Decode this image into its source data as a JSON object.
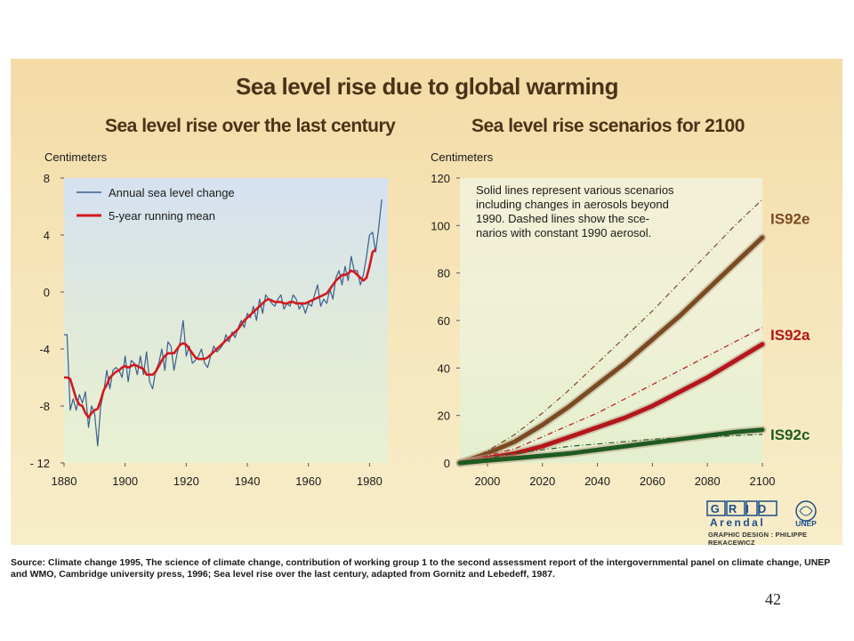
{
  "slide": {
    "main_title": "Sea level rise due to global warming",
    "source_note": "Source: Climate change 1995, The science of climate change, contribution of working group 1 to the second assessment report of the intergovernmental panel on climate change, UNEP and WMO, Cambridge university press,  1996; Sea level rise over the last century, adapted from Gornitz and Lebedeff, 1987.",
    "page_number": "42",
    "logo": {
      "grid_text": "GRID",
      "arendal_text": "Arendal",
      "unep_text": "UNEP"
    },
    "design_credit": "GRAPHIC DESIGN : PHILIPPE REKACEWICZ"
  },
  "chart_data": [
    {
      "type": "line",
      "title": "Sea level rise over the last century",
      "ylabel": "Centimeters",
      "xlabel": "",
      "xlim": [
        1880,
        1986
      ],
      "ylim": [
        -12,
        8
      ],
      "x_ticks": [
        "1880",
        "1900",
        "1920",
        "1940",
        "1960",
        "1980"
      ],
      "y_ticks": [
        "8",
        "4",
        "0",
        "-4",
        "-8",
        "- 12"
      ],
      "legend": [
        "Annual sea level change",
        "5-year running mean"
      ],
      "legend_position": "top-left",
      "colors": {
        "annual": "#3a5f8c",
        "mean": "#d11a20"
      },
      "series": [
        {
          "name": "Annual sea level change",
          "x": [
            1880,
            1881,
            1882,
            1883,
            1884,
            1885,
            1886,
            1887,
            1888,
            1889,
            1890,
            1891,
            1892,
            1893,
            1894,
            1895,
            1896,
            1897,
            1898,
            1899,
            1900,
            1901,
            1902,
            1903,
            1904,
            1905,
            1906,
            1907,
            1908,
            1909,
            1910,
            1911,
            1912,
            1913,
            1914,
            1915,
            1916,
            1917,
            1918,
            1919,
            1920,
            1921,
            1922,
            1923,
            1924,
            1925,
            1926,
            1927,
            1928,
            1929,
            1930,
            1931,
            1932,
            1933,
            1934,
            1935,
            1936,
            1937,
            1938,
            1939,
            1940,
            1941,
            1942,
            1943,
            1944,
            1945,
            1946,
            1947,
            1948,
            1949,
            1950,
            1951,
            1952,
            1953,
            1954,
            1955,
            1956,
            1957,
            1958,
            1959,
            1960,
            1961,
            1962,
            1963,
            1964,
            1965,
            1966,
            1967,
            1968,
            1969,
            1970,
            1971,
            1972,
            1973,
            1974,
            1975,
            1976,
            1977,
            1978,
            1979,
            1980,
            1981,
            1982,
            1983,
            1984
          ],
          "values": [
            -3,
            -3,
            -8.3,
            -7.5,
            -8.3,
            -7.2,
            -7.8,
            -7.0,
            -9.5,
            -8.0,
            -8.5,
            -10.8,
            -8.0,
            -7.0,
            -5.5,
            -6.8,
            -5.5,
            -5.3,
            -5.5,
            -6.0,
            -4.5,
            -6.3,
            -4.8,
            -5.0,
            -5.8,
            -4.5,
            -5.8,
            -4.2,
            -6.3,
            -6.8,
            -5.5,
            -5.0,
            -4.0,
            -5.5,
            -3.5,
            -3.8,
            -5.5,
            -4.3,
            -3.5,
            -2.0,
            -4.5,
            -3.8,
            -5.0,
            -4.8,
            -4.5,
            -4.0,
            -5.0,
            -5.3,
            -4.5,
            -3.8,
            -4.2,
            -4.0,
            -3.7,
            -3.0,
            -3.5,
            -2.8,
            -3.2,
            -2.5,
            -2.0,
            -2.5,
            -1.5,
            -1.8,
            -1.0,
            -2.0,
            -0.5,
            -1.5,
            -0.2,
            -0.5,
            -0.8,
            -1.0,
            -0.5,
            -0.2,
            -1.2,
            -0.8,
            -1.0,
            -0.2,
            -0.5,
            -1.2,
            -0.8,
            -1.5,
            -0.8,
            -1.0,
            -0.2,
            0.5,
            -1.0,
            -0.5,
            -0.8,
            0.2,
            -0.5,
            1.0,
            1.5,
            0.5,
            1.8,
            0.8,
            2.5,
            1.5,
            1.5,
            0.5,
            1.2,
            2.5,
            4.0,
            4.2,
            2.8,
            4.5,
            6.5
          ]
        },
        {
          "name": "5-year running mean",
          "x": [
            1880,
            1881,
            1882,
            1883,
            1884,
            1885,
            1886,
            1887,
            1888,
            1889,
            1890,
            1891,
            1892,
            1893,
            1894,
            1895,
            1896,
            1897,
            1898,
            1899,
            1900,
            1901,
            1902,
            1903,
            1904,
            1905,
            1906,
            1907,
            1908,
            1909,
            1910,
            1911,
            1912,
            1913,
            1914,
            1915,
            1916,
            1917,
            1918,
            1919,
            1920,
            1921,
            1922,
            1923,
            1924,
            1925,
            1926,
            1927,
            1928,
            1929,
            1930,
            1931,
            1932,
            1933,
            1934,
            1935,
            1936,
            1937,
            1938,
            1939,
            1940,
            1941,
            1942,
            1943,
            1944,
            1945,
            1946,
            1947,
            1948,
            1949,
            1950,
            1951,
            1952,
            1953,
            1954,
            1955,
            1956,
            1957,
            1958,
            1959,
            1960,
            1961,
            1962,
            1963,
            1964,
            1965,
            1966,
            1967,
            1968,
            1969,
            1970,
            1971,
            1972,
            1973,
            1974,
            1975,
            1976,
            1977,
            1978,
            1979,
            1980,
            1981,
            1982
          ],
          "values": [
            -6.0,
            -6.0,
            -6.1,
            -6.8,
            -7.5,
            -7.9,
            -8.0,
            -8.5,
            -8.8,
            -8.5,
            -8.3,
            -8.2,
            -7.6,
            -6.9,
            -6.5,
            -6.0,
            -5.8,
            -5.6,
            -5.5,
            -5.3,
            -5.2,
            -5.3,
            -5.2,
            -5.1,
            -5.2,
            -5.3,
            -5.4,
            -5.8,
            -5.8,
            -5.8,
            -5.6,
            -5.2,
            -4.8,
            -4.5,
            -4.3,
            -4.3,
            -4.3,
            -4.0,
            -3.7,
            -3.6,
            -3.7,
            -4.0,
            -4.3,
            -4.6,
            -4.7,
            -4.7,
            -4.7,
            -4.6,
            -4.4,
            -4.2,
            -4.0,
            -3.8,
            -3.6,
            -3.4,
            -3.2,
            -3.0,
            -2.8,
            -2.6,
            -2.3,
            -2.0,
            -1.8,
            -1.6,
            -1.4,
            -1.2,
            -1.0,
            -0.8,
            -0.6,
            -0.5,
            -0.6,
            -0.7,
            -0.7,
            -0.7,
            -0.8,
            -0.8,
            -0.7,
            -0.7,
            -0.8,
            -0.8,
            -0.8,
            -0.8,
            -0.7,
            -0.6,
            -0.5,
            -0.4,
            -0.3,
            -0.2,
            -0.1,
            0.2,
            0.5,
            0.8,
            1.0,
            1.2,
            1.2,
            1.3,
            1.5,
            1.4,
            1.2,
            1.0,
            0.8,
            1.0,
            1.8,
            2.8,
            3.0
          ]
        }
      ]
    },
    {
      "type": "line",
      "title": "Sea level rise scenarios for 2100",
      "ylabel": "Centimeters",
      "xlabel": "",
      "xlim": [
        1990,
        2100
      ],
      "ylim": [
        0,
        120
      ],
      "x_ticks": [
        "2000",
        "2020",
        "2040",
        "2060",
        "2080",
        "2100"
      ],
      "y_ticks": [
        "120",
        "100",
        "80",
        "60",
        "40",
        "20",
        "0"
      ],
      "annotation": "Solid lines represent various scenarios including changes in aerosols beyond 1990. Dashed lines show the scenarios with constant 1990 aerosol.",
      "annotation_lines": [
        "Solid lines represent various scenarios",
        "including changes in aerosols beyond",
        "1990. Dashed lines show the sce-",
        "narios with constant 1990 aerosol."
      ],
      "colors": {
        "IS92e": "#7a4a22",
        "IS92a": "#b5161c",
        "IS92c": "#1e5a21"
      },
      "x": [
        1990,
        2000,
        2010,
        2020,
        2030,
        2040,
        2050,
        2060,
        2070,
        2080,
        2090,
        2100
      ],
      "series": [
        {
          "name": "IS92e",
          "style": "solid",
          "values": [
            0,
            4,
            9,
            16,
            24,
            33,
            42,
            52,
            62,
            73,
            84,
            95
          ]
        },
        {
          "name": "IS92e",
          "style": "dashed",
          "values": [
            0,
            5,
            12,
            21,
            31,
            42,
            53,
            64,
            76,
            88,
            100,
            111
          ]
        },
        {
          "name": "IS92a",
          "style": "solid",
          "values": [
            0,
            2,
            4,
            7,
            11,
            15,
            19,
            24,
            30,
            36,
            43,
            50
          ]
        },
        {
          "name": "IS92a",
          "style": "dashed",
          "values": [
            0,
            3,
            6,
            11,
            16,
            21,
            27,
            33,
            39,
            45,
            51,
            57
          ]
        },
        {
          "name": "IS92c",
          "style": "solid",
          "values": [
            0,
            1,
            2,
            3,
            4,
            5.5,
            7,
            8.5,
            10,
            11.5,
            13,
            14
          ]
        },
        {
          "name": "IS92c",
          "style": "dashed",
          "values": [
            0,
            2,
            4,
            5.5,
            7,
            8,
            9,
            10,
            10.5,
            11,
            11.5,
            12
          ]
        }
      ]
    }
  ]
}
